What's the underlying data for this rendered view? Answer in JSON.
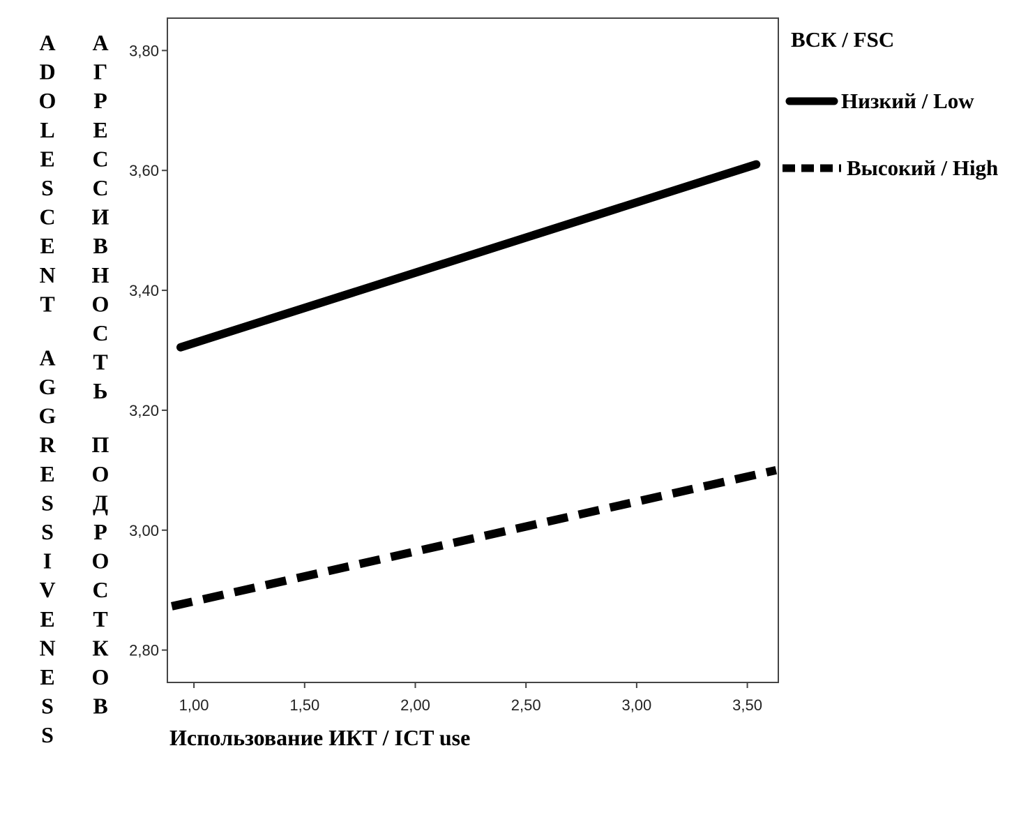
{
  "chart_data": {
    "type": "line",
    "xlabel": "Использование ИКТ / ICT use",
    "ylabel_en": "ADOLESCENT AGGRESSIVENESS",
    "ylabel_ru": "АГРЕССИВНОСТЬ ПОДРОСТКОВ",
    "legend_title": "ВСК / FSC",
    "legend_position": "right",
    "grid": false,
    "xlim": [
      0.88,
      3.64
    ],
    "ylim": [
      2.746,
      3.854
    ],
    "x_ticks": [
      1.0,
      1.5,
      2.0,
      2.5,
      3.0,
      3.5
    ],
    "x_tick_labels": [
      "1,00",
      "1,50",
      "2,00",
      "2,50",
      "3,00",
      "3,50"
    ],
    "y_ticks": [
      2.8,
      3.0,
      3.2,
      3.4,
      3.6,
      3.8
    ],
    "y_tick_labels": [
      "2,80",
      "3,00",
      "3,20",
      "3,40",
      "3,60",
      "3,80"
    ],
    "series": [
      {
        "name": "Низкий / Low",
        "style": "solid",
        "color": "#000000",
        "x": [
          0.94,
          3.54
        ],
        "y": [
          3.305,
          3.61
        ]
      },
      {
        "name": "Высокий / High",
        "style": "dashed",
        "color": "#000000",
        "x": [
          0.9,
          3.63
        ],
        "y": [
          2.873,
          3.1
        ]
      }
    ]
  }
}
